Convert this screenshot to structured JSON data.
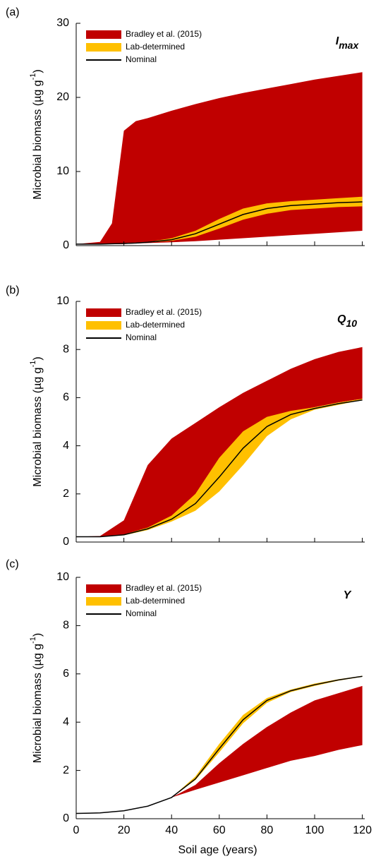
{
  "chart_data": [
    {
      "type": "band",
      "panel": "(a)",
      "label": {
        "main": "I",
        "sub": "max"
      },
      "ylabel": {
        "main": "Microbial biomass (µg g",
        "sup": "-1",
        "end": ")"
      },
      "x": [
        0,
        10,
        15,
        20,
        25,
        30,
        40,
        50,
        60,
        70,
        80,
        90,
        100,
        110,
        120
      ],
      "series": [
        {
          "name": "Bradley et al. (2015)",
          "color": "#c00000",
          "upper": [
            0.2,
            0.5,
            3,
            15.5,
            16.8,
            17.2,
            18.2,
            19.1,
            19.9,
            20.6,
            21.2,
            21.8,
            22.4,
            22.9,
            23.4
          ],
          "lower": [
            0.2,
            0.2,
            0.2,
            0.2,
            0.3,
            0.35,
            0.45,
            0.6,
            0.8,
            1.0,
            1.2,
            1.4,
            1.6,
            1.8,
            2.0
          ]
        },
        {
          "name": "Lab-determined",
          "color": "#ffc000",
          "upper": [
            0.2,
            0.2,
            0.25,
            0.3,
            0.4,
            0.5,
            1.0,
            2.0,
            3.6,
            5.0,
            5.7,
            6.0,
            6.2,
            6.4,
            6.6
          ],
          "lower": [
            0.2,
            0.2,
            0.25,
            0.3,
            0.35,
            0.4,
            0.65,
            1.2,
            2.3,
            3.5,
            4.3,
            4.8,
            5.0,
            5.2,
            5.3
          ]
        },
        {
          "name": "Nominal",
          "color": "#000000",
          "values": [
            0.2,
            0.2,
            0.25,
            0.3,
            0.35,
            0.45,
            0.8,
            1.6,
            2.9,
            4.2,
            5.0,
            5.4,
            5.6,
            5.8,
            5.9
          ]
        }
      ],
      "xlim": [
        0,
        121
      ],
      "xticks": [
        0,
        20,
        40,
        60,
        80,
        100,
        120
      ],
      "ylim": [
        0,
        30
      ],
      "yticks": [
        0,
        10,
        20,
        30
      ]
    },
    {
      "type": "band",
      "panel": "(b)",
      "label": {
        "main": "Q",
        "sub": "10"
      },
      "ylabel": {
        "main": "Microbial biomass (µg g",
        "sup": "-1",
        "end": ")"
      },
      "x": [
        0,
        10,
        20,
        30,
        40,
        50,
        60,
        70,
        80,
        90,
        100,
        110,
        120
      ],
      "series": [
        {
          "name": "Bradley et al. (2015)",
          "color": "#c00000",
          "upper": [
            0.22,
            0.25,
            0.9,
            3.2,
            4.3,
            4.95,
            5.6,
            6.2,
            6.7,
            7.2,
            7.6,
            7.9,
            8.1
          ],
          "lower": [
            0.22,
            0.22,
            0.3,
            0.55,
            1.0,
            1.8,
            3.2,
            4.5,
            5.1,
            5.4,
            5.6,
            5.8,
            5.95
          ]
        },
        {
          "name": "Lab-determined",
          "color": "#ffc000",
          "upper": [
            0.22,
            0.22,
            0.32,
            0.6,
            1.1,
            2.0,
            3.5,
            4.6,
            5.2,
            5.45,
            5.6,
            5.8,
            5.95
          ],
          "lower": [
            0.22,
            0.22,
            0.28,
            0.5,
            0.85,
            1.3,
            2.1,
            3.2,
            4.4,
            5.1,
            5.5,
            5.7,
            5.9
          ]
        },
        {
          "name": "Nominal",
          "color": "#000000",
          "values": [
            0.22,
            0.22,
            0.3,
            0.55,
            0.95,
            1.6,
            2.7,
            3.9,
            4.8,
            5.3,
            5.55,
            5.75,
            5.9
          ]
        }
      ],
      "xlim": [
        0,
        121
      ],
      "xticks": [
        0,
        20,
        40,
        60,
        80,
        100,
        120
      ],
      "ylim": [
        0,
        10
      ],
      "yticks": [
        0,
        2,
        4,
        6,
        8,
        10
      ]
    },
    {
      "type": "band",
      "panel": "(c)",
      "label": {
        "main": "Y"
      },
      "ylabel": {
        "main": "Microbial biomass (µg g",
        "sup": "-1",
        "end": ")"
      },
      "xlabel": "Soil age (years)",
      "xtick_labels": true,
      "x": [
        0,
        10,
        20,
        30,
        40,
        50,
        60,
        70,
        80,
        90,
        100,
        110,
        120
      ],
      "series": [
        {
          "name": "Bradley et al. (2015)",
          "color": "#c00000",
          "upper": [
            0.22,
            0.24,
            0.33,
            0.52,
            0.88,
            1.4,
            2.3,
            3.1,
            3.8,
            4.4,
            4.9,
            5.2,
            5.5
          ],
          "lower": [
            0.22,
            0.24,
            0.33,
            0.52,
            0.88,
            1.2,
            1.5,
            1.8,
            2.1,
            2.4,
            2.6,
            2.85,
            3.05
          ]
        },
        {
          "name": "Lab-determined",
          "color": "#ffc000",
          "upper": [
            0.22,
            0.24,
            0.33,
            0.52,
            0.88,
            1.75,
            3.1,
            4.3,
            5.0,
            5.35,
            5.6,
            5.78,
            5.92
          ],
          "lower": [
            0.22,
            0.24,
            0.33,
            0.52,
            0.88,
            1.6,
            2.75,
            3.95,
            4.8,
            5.25,
            5.5,
            5.72,
            5.88
          ]
        },
        {
          "name": "Nominal",
          "color": "#000000",
          "values": [
            0.22,
            0.24,
            0.33,
            0.52,
            0.88,
            1.65,
            2.9,
            4.1,
            4.9,
            5.3,
            5.55,
            5.75,
            5.9
          ]
        }
      ],
      "xlim": [
        0,
        121
      ],
      "xticks": [
        0,
        20,
        40,
        60,
        80,
        100,
        120
      ],
      "ylim": [
        0,
        10
      ],
      "yticks": [
        0,
        2,
        4,
        6,
        8,
        10
      ]
    }
  ]
}
